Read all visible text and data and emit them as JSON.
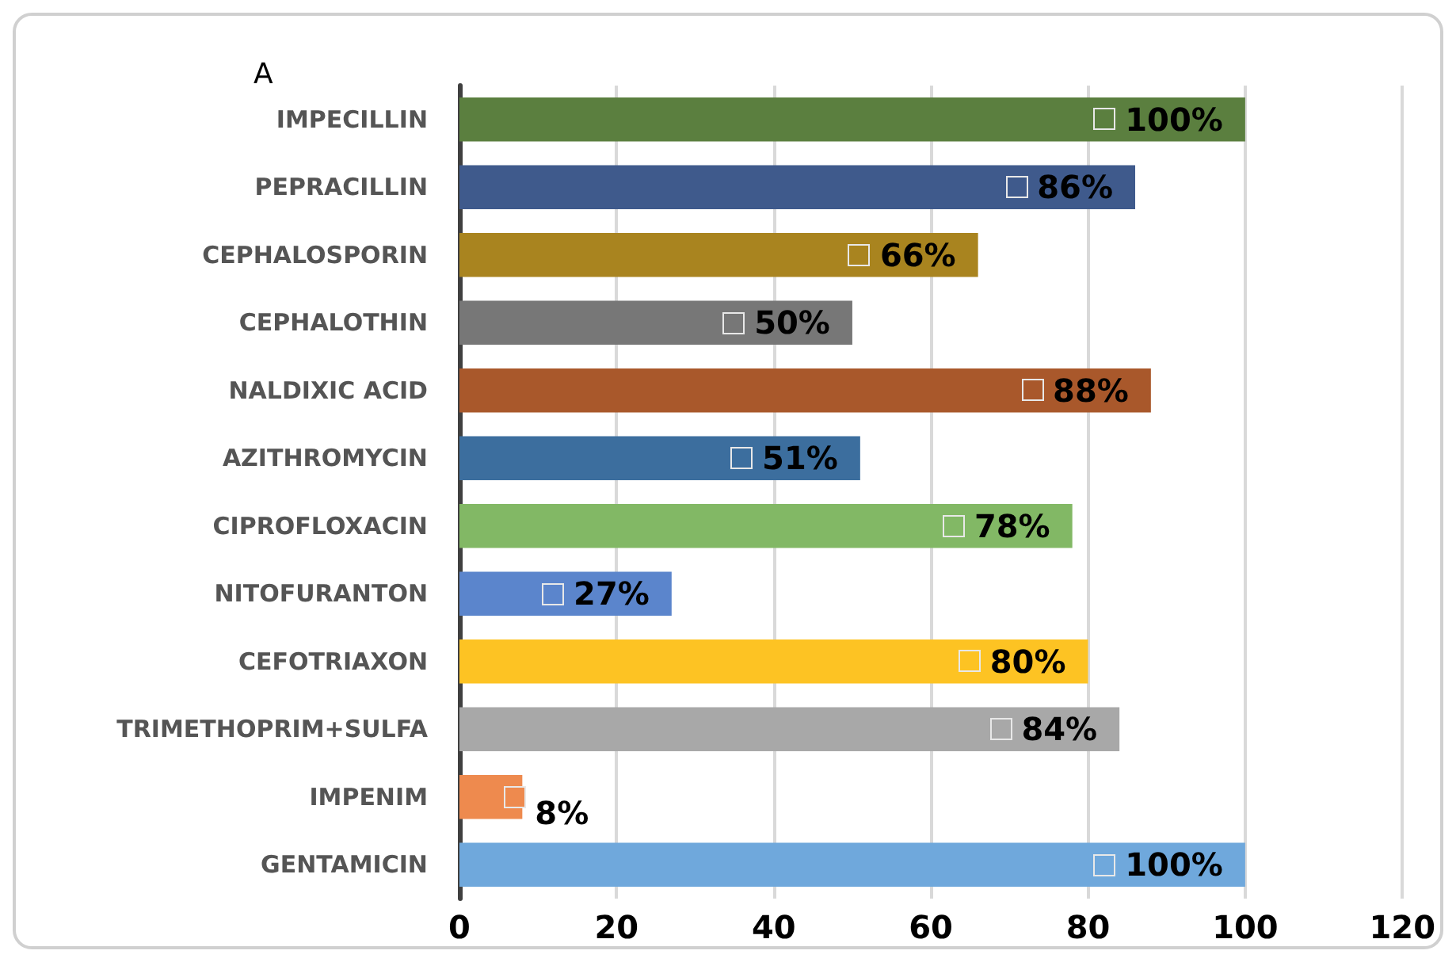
{
  "chart_data": {
    "type": "bar",
    "orientation": "horizontal",
    "annotations": [
      "A"
    ],
    "categories": [
      "IMPECILLIN",
      "PEPRACILLIN",
      "CEPHALOSPORIN",
      "CEPHALOTHIN",
      "NALDIXIC ACID",
      "AZITHROMYCIN",
      "CIPROFLOXACIN",
      "NITOFURANTON",
      "CEFOTRIAXON",
      "TRIMETHOPRIM+SULFA",
      "IMPENIM",
      "GENTAMICIN"
    ],
    "values": [
      100,
      86,
      66,
      50,
      88,
      51,
      78,
      27,
      80,
      84,
      8,
      100
    ],
    "value_labels": [
      "100%",
      "86%",
      "66%",
      "50%",
      "88%",
      "51%",
      "78%",
      "27%",
      "80%",
      "84%",
      "8%",
      "100%"
    ],
    "colors": [
      "#5b7f3f",
      "#3f5a8c",
      "#a9841f",
      "#777777",
      "#a9582b",
      "#3c6e9e",
      "#82b865",
      "#5b85cc",
      "#fdc323",
      "#a8a8a8",
      "#ee8a4e",
      "#6fa8dc"
    ],
    "xlim": [
      0,
      120
    ],
    "xticks": [
      0,
      20,
      40,
      60,
      80,
      100,
      120
    ],
    "grid": "x"
  }
}
